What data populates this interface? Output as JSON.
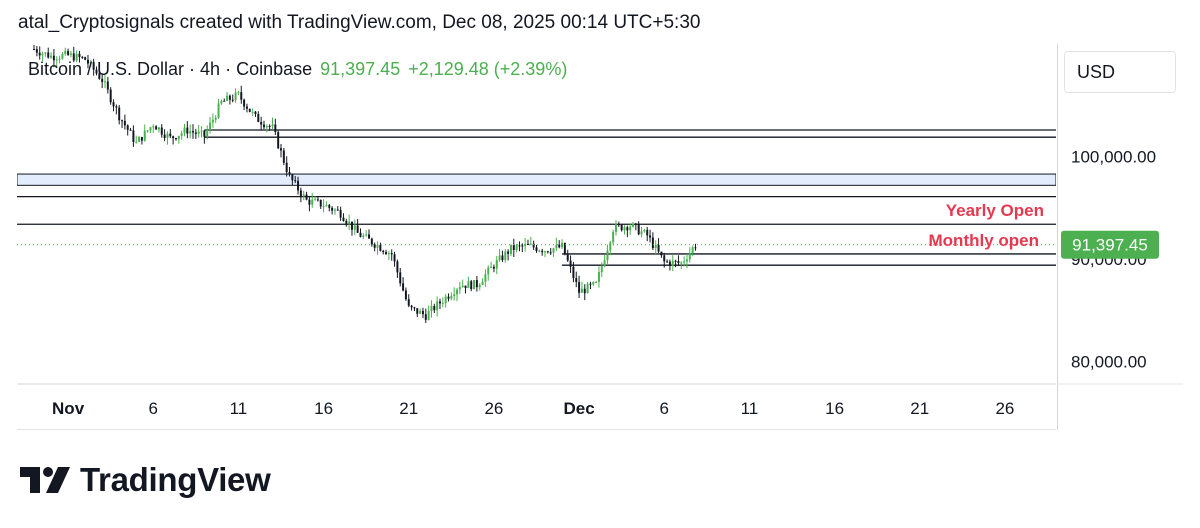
{
  "caption": "atal_Cryptosignals created with TradingView.com, Dec 08, 2025 00:14 UTC+5:30",
  "symbol": {
    "name": "Bitcoin / U.S. Dollar · 4h · Coinbase",
    "last": "91,397.45",
    "change": "+2,129.48 (+2.39%)"
  },
  "currency_label": "USD",
  "brand": "TradingView",
  "colors": {
    "up": "#4caf50",
    "annotation": "#e53950",
    "zone": "#e3ecfd",
    "line": "#131722",
    "price_label_bg": "#4caf50"
  },
  "chart_data": {
    "type": "line",
    "interval": "4h",
    "y_unit": "USD",
    "ylim": [
      77800,
      111000
    ],
    "xlim": [
      "2025-10-29",
      "2025-12-29"
    ],
    "y_ticks": [
      {
        "value": 100000,
        "label": "100,000.00"
      },
      {
        "value": 90000,
        "label": "90,000.00"
      },
      {
        "value": 80000,
        "label": "80,000.00"
      }
    ],
    "x_ticks": [
      {
        "date": "2025-11-01",
        "label": "Nov"
      },
      {
        "date": "2025-11-06",
        "label": "6"
      },
      {
        "date": "2025-11-11",
        "label": "11"
      },
      {
        "date": "2025-11-16",
        "label": "16"
      },
      {
        "date": "2025-11-21",
        "label": "21"
      },
      {
        "date": "2025-11-26",
        "label": "26"
      },
      {
        "date": "2025-12-01",
        "label": "Dec"
      },
      {
        "date": "2025-12-06",
        "label": "6"
      },
      {
        "date": "2025-12-11",
        "label": "11"
      },
      {
        "date": "2025-12-16",
        "label": "16"
      },
      {
        "date": "2025-12-21",
        "label": "21"
      },
      {
        "date": "2025-12-26",
        "label": "26"
      }
    ],
    "price_path": [
      [
        "2025-10-30",
        110500
      ],
      [
        "2025-10-31",
        109800
      ],
      [
        "2025-11-01",
        109900
      ],
      [
        "2025-11-02",
        109500
      ],
      [
        "2025-11-03",
        107500
      ],
      [
        "2025-11-04",
        104000
      ],
      [
        "2025-11-05",
        101300
      ],
      [
        "2025-11-06",
        103200
      ],
      [
        "2025-11-07",
        101800
      ],
      [
        "2025-11-08",
        102600
      ],
      [
        "2025-11-09",
        102000
      ],
      [
        "2025-11-10",
        105300
      ],
      [
        "2025-11-11",
        106000
      ],
      [
        "2025-11-12",
        103800
      ],
      [
        "2025-11-13",
        102800
      ],
      [
        "2025-11-14",
        98000
      ],
      [
        "2025-11-15",
        95700
      ],
      [
        "2025-11-16",
        95300
      ],
      [
        "2025-11-17",
        94500
      ],
      [
        "2025-11-18",
        92500
      ],
      [
        "2025-11-19",
        91500
      ],
      [
        "2025-11-20",
        90500
      ],
      [
        "2025-11-21",
        85200
      ],
      [
        "2025-11-22",
        84500
      ],
      [
        "2025-11-23",
        86000
      ],
      [
        "2025-11-24",
        87500
      ],
      [
        "2025-11-25",
        87500
      ],
      [
        "2025-11-26",
        89400
      ],
      [
        "2025-11-27",
        91000
      ],
      [
        "2025-11-28",
        91300
      ],
      [
        "2025-11-29",
        90900
      ],
      [
        "2025-11-30",
        91200
      ],
      [
        "2025-12-01",
        86800
      ],
      [
        "2025-12-02",
        87500
      ],
      [
        "2025-12-03",
        93000
      ],
      [
        "2025-12-04",
        93300
      ],
      [
        "2025-12-05",
        92300
      ],
      [
        "2025-12-06",
        89700
      ],
      [
        "2025-12-07",
        89600
      ],
      [
        "2025-12-07T20:00",
        91397.45
      ]
    ],
    "zone": [
      97200,
      98300
    ],
    "levels": [
      {
        "price": 102600,
        "start": "2025-11-09"
      },
      {
        "price": 101900,
        "start": "2025-11-09"
      },
      {
        "price": 96100,
        "start": "2025-10-29"
      },
      {
        "price": 93400,
        "start": "2025-10-29",
        "label": "Yearly Open"
      },
      {
        "price": 90500,
        "start": "2025-11-30",
        "label": "Monthly open"
      },
      {
        "price": 89400,
        "start": "2025-11-30"
      }
    ],
    "annotations": [
      "Yearly Open",
      "Monthly open"
    ],
    "last_price": 91397.45,
    "last_price_label": "91,397.45"
  }
}
